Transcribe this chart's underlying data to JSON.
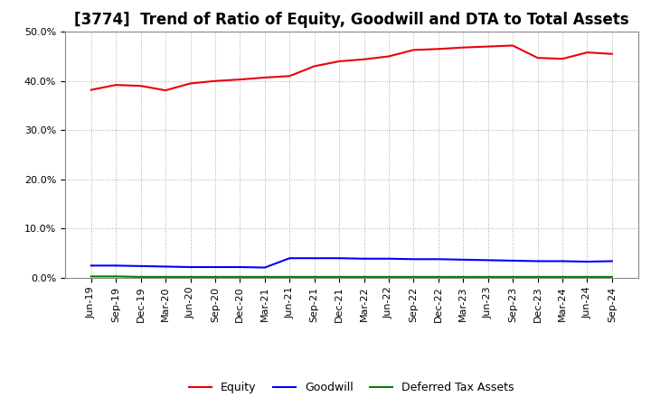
{
  "title": "[3774]  Trend of Ratio of Equity, Goodwill and DTA to Total Assets",
  "ylim": [
    0.0,
    0.5
  ],
  "yticks": [
    0.0,
    0.1,
    0.2,
    0.3,
    0.4,
    0.5
  ],
  "x_labels": [
    "Jun-19",
    "Sep-19",
    "Dec-19",
    "Mar-20",
    "Jun-20",
    "Sep-20",
    "Dec-20",
    "Mar-21",
    "Jun-21",
    "Sep-21",
    "Dec-21",
    "Mar-22",
    "Jun-22",
    "Sep-22",
    "Dec-22",
    "Mar-23",
    "Jun-23",
    "Sep-23",
    "Dec-23",
    "Mar-24",
    "Jun-24",
    "Sep-24"
  ],
  "equity": [
    0.382,
    0.392,
    0.39,
    0.381,
    0.395,
    0.4,
    0.403,
    0.407,
    0.41,
    0.43,
    0.44,
    0.444,
    0.45,
    0.463,
    0.465,
    0.468,
    0.47,
    0.472,
    0.447,
    0.445,
    0.458,
    0.455
  ],
  "goodwill": [
    0.025,
    0.025,
    0.024,
    0.023,
    0.022,
    0.022,
    0.022,
    0.021,
    0.04,
    0.04,
    0.04,
    0.039,
    0.039,
    0.038,
    0.038,
    0.037,
    0.036,
    0.035,
    0.034,
    0.034,
    0.033,
    0.034
  ],
  "dta": [
    0.003,
    0.003,
    0.002,
    0.002,
    0.002,
    0.002,
    0.002,
    0.002,
    0.002,
    0.002,
    0.002,
    0.002,
    0.002,
    0.002,
    0.002,
    0.002,
    0.002,
    0.002,
    0.002,
    0.002,
    0.002,
    0.002
  ],
  "equity_color": "#e8000d",
  "goodwill_color": "#0000ff",
  "dta_color": "#008000",
  "bg_color": "#ffffff",
  "plot_bg_color": "#ffffff",
  "grid_color": "#aaaaaa",
  "title_fontsize": 12,
  "tick_fontsize": 8,
  "legend_labels": [
    "Equity",
    "Goodwill",
    "Deferred Tax Assets"
  ]
}
